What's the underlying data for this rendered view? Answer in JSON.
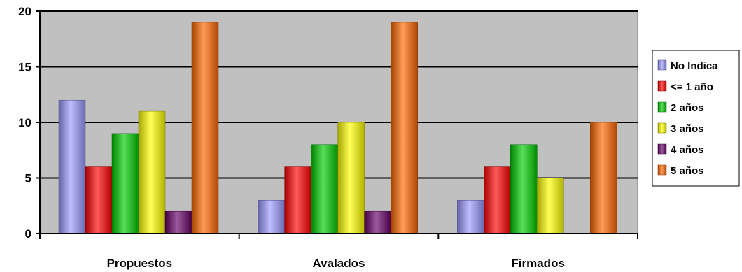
{
  "chart_data": {
    "type": "bar",
    "title": "",
    "xlabel": "",
    "ylabel": "",
    "ylim": [
      0,
      20
    ],
    "yticks": [
      0,
      5,
      10,
      15,
      20
    ],
    "grid": true,
    "plot_background": "#c0c0c0",
    "legend_position": "right",
    "categories": [
      "Propuestos",
      "Avalados",
      "Firmados"
    ],
    "series": [
      {
        "name": "No Indica",
        "color": "#9999ff",
        "values": [
          12,
          3,
          3
        ]
      },
      {
        "name": "<= 1 año",
        "color": "#ff0000",
        "values": [
          6,
          6,
          6
        ]
      },
      {
        "name": "2 años",
        "color": "#00cc00",
        "values": [
          9,
          8,
          8
        ]
      },
      {
        "name": "3 años",
        "color": "#ffff00",
        "values": [
          11,
          10,
          5
        ]
      },
      {
        "name": "4 años",
        "color": "#660066",
        "values": [
          2,
          2,
          0
        ]
      },
      {
        "name": "5 años",
        "color": "#ff6600",
        "values": [
          19,
          19,
          10
        ]
      }
    ]
  }
}
